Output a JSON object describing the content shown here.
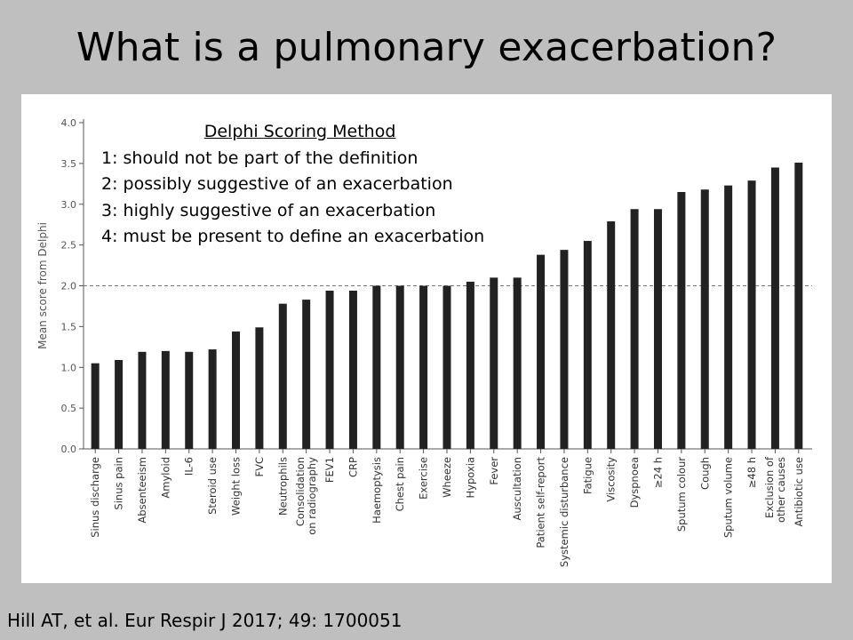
{
  "slide": {
    "title": "What is a pulmonary exacerbation?",
    "citation": "Hill AT, et al. Eur Respir J 2017; 49: 1700051"
  },
  "legend": {
    "title": "Delphi Scoring Method",
    "items": [
      "1: should not be part of the definition",
      "2: possibly suggestive of an exacerbation",
      "3: highly suggestive of an exacerbation",
      "4: must be present to define an exacerbation"
    ]
  },
  "chart_data": {
    "type": "bar",
    "title": "",
    "xlabel": "",
    "ylabel": "Mean score from Delphi",
    "ylim": [
      0,
      4
    ],
    "yticks": [
      "0.0",
      "0.5",
      "1.0",
      "1.5",
      "2.0",
      "2.5",
      "3.0",
      "3.5",
      "4.0"
    ],
    "reference_line": 2.0,
    "bar_color": "#222222",
    "categories": [
      "Sinus discharge",
      "Sinus pain",
      "Absenteeism",
      "Amyloid",
      "IL-6",
      "Steroid use",
      "Weight loss",
      "FVC",
      "Neutrophils",
      "Consolidation on radiography",
      "FEV1",
      "CRP",
      "Haemoptysis",
      "Chest pain",
      "Exercise",
      "Wheeze",
      "Hypoxia",
      "Fever",
      "Auscultation",
      "Patient self-report",
      "Systemic disturbance",
      "Fatigue",
      "Viscosity",
      "Dyspnoea",
      ">24 h",
      "Sputum colour",
      "Cough",
      "Sputum volume",
      ">48 h",
      "Exclusion of other causes",
      "Antibiotic use"
    ],
    "category_display": [
      [
        "Sinus discharge"
      ],
      [
        "Sinus pain"
      ],
      [
        "Absenteeism"
      ],
      [
        "Amyloid"
      ],
      [
        "IL-6"
      ],
      [
        "Steroid use"
      ],
      [
        "Weight loss"
      ],
      [
        "FVC"
      ],
      [
        "Neutrophils"
      ],
      [
        "Consolidation",
        "on radiography"
      ],
      [
        "FEV1"
      ],
      [
        "CRP"
      ],
      [
        "Haemoptysis"
      ],
      [
        "Chest pain"
      ],
      [
        "Exercise"
      ],
      [
        "Wheeze"
      ],
      [
        "Hypoxia"
      ],
      [
        "Fever"
      ],
      [
        "Auscultation"
      ],
      [
        "Patient self-report"
      ],
      [
        "Systemic disturbance"
      ],
      [
        "Fatigue"
      ],
      [
        "Viscosity"
      ],
      [
        "Dyspnoea"
      ],
      [
        "≥24 h"
      ],
      [
        "Sputum colour"
      ],
      [
        "Cough"
      ],
      [
        "Sputum volume"
      ],
      [
        "≥48 h"
      ],
      [
        "Exclusion of",
        "other causes"
      ],
      [
        "Antibiotic use"
      ]
    ],
    "values": [
      1.05,
      1.09,
      1.19,
      1.2,
      1.19,
      1.22,
      1.44,
      1.49,
      1.78,
      1.83,
      1.94,
      1.94,
      2.0,
      2.0,
      2.0,
      2.0,
      2.05,
      2.1,
      2.1,
      2.38,
      2.44,
      2.55,
      2.79,
      2.94,
      2.94,
      3.15,
      3.18,
      3.23,
      3.29,
      3.45,
      3.51
    ]
  }
}
